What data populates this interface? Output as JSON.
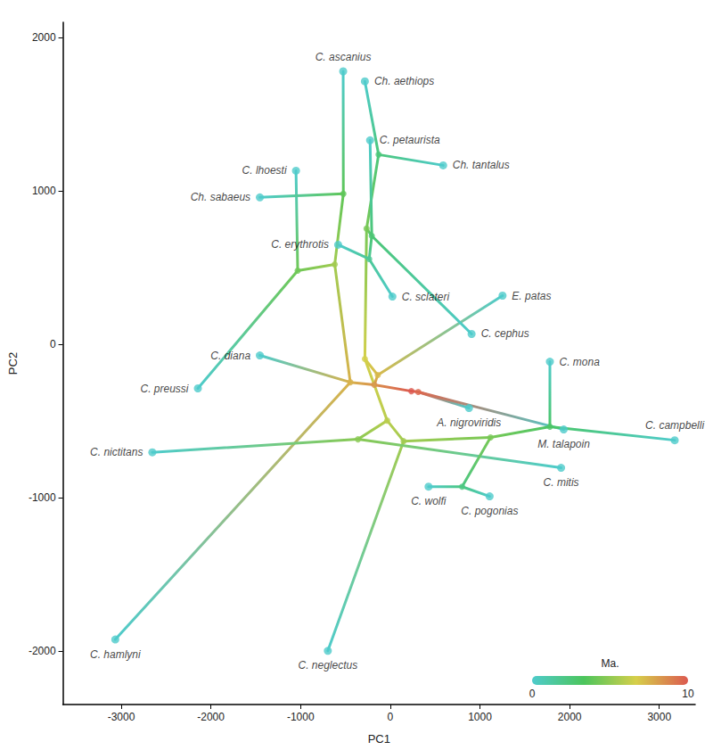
{
  "chart_data": {
    "type": "phylomorphospace",
    "x_label": "PC1",
    "y_label": "PC2",
    "xlim": [
      -3650,
      3400
    ],
    "xticks": [
      -3000,
      -2000,
      -1000,
      0,
      1000,
      2000,
      3000
    ],
    "ylim": [
      -2350,
      2100
    ],
    "yticks": [
      -2000,
      -1000,
      0,
      1000,
      2000
    ],
    "grid": false,
    "nodes": [
      {
        "label": "C. ascanius",
        "x": -525,
        "y": 1780,
        "age": 0
      },
      {
        "label": "Ch. aethiops",
        "x": -283,
        "y": 1715,
        "age": 0
      },
      {
        "label": "C. petaurista",
        "x": -225,
        "y": 1330,
        "age": 0
      },
      {
        "label": "Ch. tantalus",
        "x": 590,
        "y": 1167,
        "age": 0
      },
      {
        "label": "C. lhoesti",
        "x": -1051,
        "y": 1132,
        "age": 0
      },
      {
        "label": "Ch. sabaeus",
        "x": -1454,
        "y": 958,
        "age": 0
      },
      {
        "label": "C. erythrotis",
        "x": -581,
        "y": 649,
        "age": 0
      },
      {
        "label": "C. sclateri",
        "x": 24,
        "y": 311,
        "age": 0
      },
      {
        "label": "E. patas",
        "x": 1252,
        "y": 317,
        "age": 0
      },
      {
        "label": "C. cephus",
        "x": 907,
        "y": 67,
        "age": 0
      },
      {
        "label": "C. mona",
        "x": 1780,
        "y": -114,
        "age": 0
      },
      {
        "label": "C. diana",
        "x": -1454,
        "y": -73,
        "age": 0
      },
      {
        "label": "C. preussi",
        "x": -2145,
        "y": -288,
        "age": 0
      },
      {
        "label": "A. nigroviridis",
        "x": 878,
        "y": -416,
        "age": 0
      },
      {
        "label": "M. talapoin",
        "x": 1934,
        "y": -556,
        "age": 0
      },
      {
        "label": "C. nictitans",
        "x": -2653,
        "y": -705,
        "age": 0
      },
      {
        "label": "C. campbelli",
        "x": 3172,
        "y": -626,
        "age": 0
      },
      {
        "label": "C. mitis",
        "x": 1905,
        "y": -806,
        "age": 0
      },
      {
        "label": "C. wolfi",
        "x": 427,
        "y": -929,
        "age": 0
      },
      {
        "label": "C. pogonias",
        "x": 1108,
        "y": -992,
        "age": 0
      },
      {
        "label": "C. hamlyni",
        "x": -3066,
        "y": -1926,
        "age": 0
      },
      {
        "label": "C. neglectus",
        "x": -696,
        "y": -2000,
        "age": 0
      },
      {
        "x": 235,
        "y": -306,
        "age": 10
      },
      {
        "x": 312,
        "y": -311,
        "age": 9.6
      },
      {
        "x": -178,
        "y": -265,
        "age": 8.4
      },
      {
        "x": -139,
        "y": -201,
        "age": 7.3
      },
      {
        "x": -446,
        "y": -248,
        "age": 7.5
      },
      {
        "x": -283,
        "y": -96,
        "age": 6.6
      },
      {
        "x": -34,
        "y": -498,
        "age": 6.0
      },
      {
        "x": 149,
        "y": -632,
        "age": 5.4
      },
      {
        "x": -360,
        "y": -620,
        "age": 4.8
      },
      {
        "x": 1118,
        "y": -608,
        "age": 4.4
      },
      {
        "x": 1780,
        "y": -538,
        "age": 3.0
      },
      {
        "x": 801,
        "y": -929,
        "age": 2.2
      },
      {
        "x": -264,
        "y": 754,
        "age": 4.4
      },
      {
        "x": -206,
        "y": 707,
        "age": 2.6
      },
      {
        "x": -235,
        "y": 556,
        "age": 1.6
      },
      {
        "x": -130,
        "y": 1237,
        "age": 2.4
      },
      {
        "x": -619,
        "y": 521,
        "age": 5.4
      },
      {
        "x": -1032,
        "y": 480,
        "age": 4.2
      },
      {
        "x": -523,
        "y": 981,
        "age": 3.8
      }
    ],
    "edges": [
      [
        22,
        23
      ],
      [
        22,
        24
      ],
      [
        23,
        13
      ],
      [
        23,
        14
      ],
      [
        24,
        25
      ],
      [
        24,
        26
      ],
      [
        25,
        8
      ],
      [
        25,
        27
      ],
      [
        26,
        20
      ],
      [
        26,
        38
      ],
      [
        26,
        11
      ],
      [
        27,
        34
      ],
      [
        27,
        28
      ],
      [
        28,
        29
      ],
      [
        28,
        30
      ],
      [
        29,
        21
      ],
      [
        29,
        31
      ],
      [
        30,
        15
      ],
      [
        30,
        17
      ],
      [
        31,
        32
      ],
      [
        31,
        33
      ],
      [
        32,
        10
      ],
      [
        32,
        16
      ],
      [
        33,
        18
      ],
      [
        33,
        19
      ],
      [
        34,
        35
      ],
      [
        34,
        37
      ],
      [
        35,
        9
      ],
      [
        35,
        36
      ],
      [
        35,
        2
      ],
      [
        36,
        6
      ],
      [
        36,
        7
      ],
      [
        37,
        3
      ],
      [
        37,
        1
      ],
      [
        38,
        39
      ],
      [
        38,
        40
      ],
      [
        39,
        4
      ],
      [
        39,
        12
      ],
      [
        40,
        5
      ],
      [
        40,
        0
      ]
    ],
    "colorbar": {
      "title": "Ma.",
      "range": [
        0,
        10
      ],
      "ticks": [
        0,
        10
      ],
      "colors": [
        "#4ecbcb",
        "#4cc55c",
        "#d6cf4a",
        "#dc5a50"
      ]
    }
  }
}
